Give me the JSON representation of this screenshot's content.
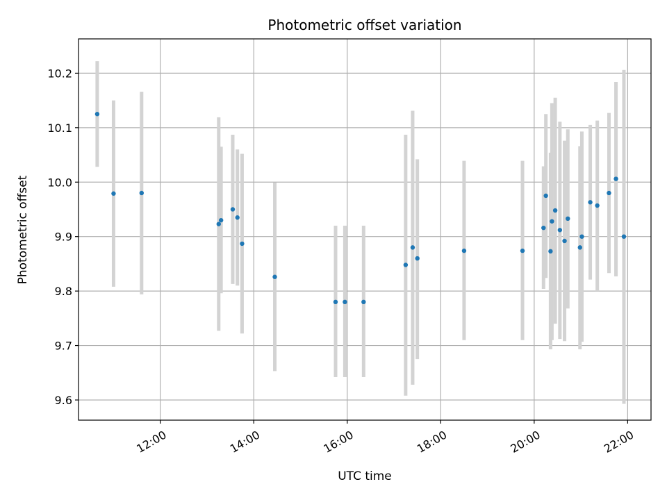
{
  "chart_data": {
    "type": "scatter",
    "title": "Photometric offset variation",
    "xlabel": "UTC time",
    "ylabel": "Photometric offset",
    "x_unit": "hours UTC",
    "xlim": [
      10.25,
      22.5
    ],
    "ylim": [
      9.563,
      10.263
    ],
    "x_ticks": [
      {
        "value": 12,
        "label": "12:00"
      },
      {
        "value": 14,
        "label": "14:00"
      },
      {
        "value": 16,
        "label": "16:00"
      },
      {
        "value": 18,
        "label": "18:00"
      },
      {
        "value": 20,
        "label": "20:00"
      },
      {
        "value": 22,
        "label": "22:00"
      }
    ],
    "y_ticks": [
      {
        "value": 9.6,
        "label": "9.6"
      },
      {
        "value": 9.7,
        "label": "9.7"
      },
      {
        "value": 9.8,
        "label": "9.8"
      },
      {
        "value": 9.9,
        "label": "9.9"
      },
      {
        "value": 10.0,
        "label": "10.0"
      },
      {
        "value": 10.1,
        "label": "10.1"
      },
      {
        "value": 10.2,
        "label": "10.2"
      }
    ],
    "grid": true,
    "marker_color": "#1f77b4",
    "errorbar_color": "#d3d3d3",
    "points": [
      {
        "x": 10.65,
        "y": 10.125,
        "low": 10.028,
        "high": 10.222
      },
      {
        "x": 11.0,
        "y": 9.979,
        "low": 9.808,
        "high": 10.15
      },
      {
        "x": 11.6,
        "y": 9.98,
        "low": 9.794,
        "high": 10.166
      },
      {
        "x": 13.25,
        "y": 9.923,
        "low": 9.727,
        "high": 10.119
      },
      {
        "x": 13.3,
        "y": 9.93,
        "low": 9.796,
        "high": 10.065
      },
      {
        "x": 13.55,
        "y": 9.95,
        "low": 9.813,
        "high": 10.087
      },
      {
        "x": 13.65,
        "y": 9.935,
        "low": 9.81,
        "high": 10.06
      },
      {
        "x": 13.75,
        "y": 9.887,
        "low": 9.722,
        "high": 10.052
      },
      {
        "x": 14.45,
        "y": 9.826,
        "low": 9.653,
        "high": 9.999
      },
      {
        "x": 15.75,
        "y": 9.78,
        "low": 9.642,
        "high": 9.92
      },
      {
        "x": 15.95,
        "y": 9.78,
        "low": 9.642,
        "high": 9.92
      },
      {
        "x": 16.35,
        "y": 9.78,
        "low": 9.642,
        "high": 9.92
      },
      {
        "x": 17.25,
        "y": 9.848,
        "low": 9.608,
        "high": 10.087
      },
      {
        "x": 17.4,
        "y": 9.88,
        "low": 9.628,
        "high": 10.131
      },
      {
        "x": 17.5,
        "y": 9.86,
        "low": 9.675,
        "high": 10.042
      },
      {
        "x": 18.5,
        "y": 9.874,
        "low": 9.71,
        "high": 10.039
      },
      {
        "x": 19.75,
        "y": 9.874,
        "low": 9.71,
        "high": 10.039
      },
      {
        "x": 20.2,
        "y": 9.916,
        "low": 9.804,
        "high": 10.029
      },
      {
        "x": 20.25,
        "y": 9.975,
        "low": 9.824,
        "high": 10.125
      },
      {
        "x": 20.35,
        "y": 9.873,
        "low": 9.693,
        "high": 10.054
      },
      {
        "x": 20.38,
        "y": 9.928,
        "low": 9.71,
        "high": 10.145
      },
      {
        "x": 20.45,
        "y": 9.948,
        "low": 9.74,
        "high": 10.155
      },
      {
        "x": 20.55,
        "y": 9.912,
        "low": 9.712,
        "high": 10.111
      },
      {
        "x": 20.65,
        "y": 9.892,
        "low": 9.708,
        "high": 10.076
      },
      {
        "x": 20.72,
        "y": 9.933,
        "low": 9.768,
        "high": 10.097
      },
      {
        "x": 20.98,
        "y": 9.88,
        "low": 9.693,
        "high": 10.066
      },
      {
        "x": 21.02,
        "y": 9.9,
        "low": 9.707,
        "high": 10.093
      },
      {
        "x": 21.2,
        "y": 9.963,
        "low": 9.821,
        "high": 10.105
      },
      {
        "x": 21.35,
        "y": 9.957,
        "low": 9.8,
        "high": 10.113
      },
      {
        "x": 21.6,
        "y": 9.98,
        "low": 9.833,
        "high": 10.127
      },
      {
        "x": 21.75,
        "y": 10.006,
        "low": 9.827,
        "high": 10.184
      },
      {
        "x": 21.92,
        "y": 9.9,
        "low": 9.593,
        "high": 10.206
      }
    ]
  }
}
